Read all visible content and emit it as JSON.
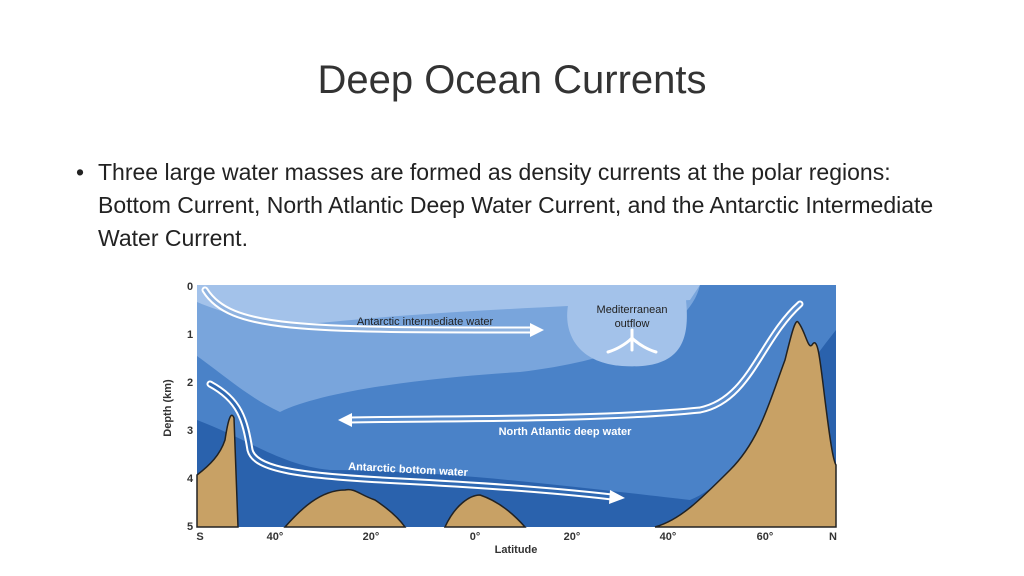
{
  "title": "Deep Ocean Currents",
  "bullets": [
    "Three large water masses are formed as density currents at the polar regions: Bottom Current, North Atlantic Deep Water Current, and the Antarctic Intermediate Water Current."
  ],
  "figure": {
    "depth_axis": {
      "label": "Depth (km)",
      "ticks": [
        "0",
        "1",
        "2",
        "3",
        "4",
        "5"
      ]
    },
    "latitude_axis": {
      "label": "Latitude",
      "ticks": [
        "S",
        "40°",
        "20°",
        "0°",
        "20°",
        "40°",
        "60°",
        "N"
      ]
    },
    "labels": {
      "antarctic_intermediate": "Antarctic intermediate water",
      "mediterranean": [
        "Mediterranean",
        "outflow"
      ],
      "north_atlantic": "North Atlantic deep water",
      "antarctic_bottom": "Antarctic bottom water"
    }
  }
}
